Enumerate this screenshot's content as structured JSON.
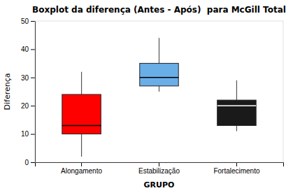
{
  "chart_data": {
    "type": "box",
    "title": "Boxplot da diferença (Antes - Após)  para McGill Total",
    "x_label": "GRUPO",
    "y_label": "Diferença",
    "categories": [
      "Alongamento",
      "Estabilização",
      "Fortalecimento"
    ],
    "boxes": [
      {
        "whisker_low": 2,
        "q1": 10,
        "median": 13,
        "q3": 24,
        "whisker_high": 32
      },
      {
        "whisker_low": 25,
        "q1": 27,
        "median": 30,
        "q3": 35,
        "whisker_high": 44
      },
      {
        "whisker_low": 11,
        "q1": 13,
        "median": 20,
        "q3": 22,
        "whisker_high": 29
      }
    ],
    "colors": [
      "#FF0000",
      "#6aaee8",
      "#1A1A1A"
    ],
    "ylim": [
      0,
      50
    ],
    "yticks": [
      0,
      10,
      20,
      30,
      40,
      50
    ],
    "grid": false
  }
}
